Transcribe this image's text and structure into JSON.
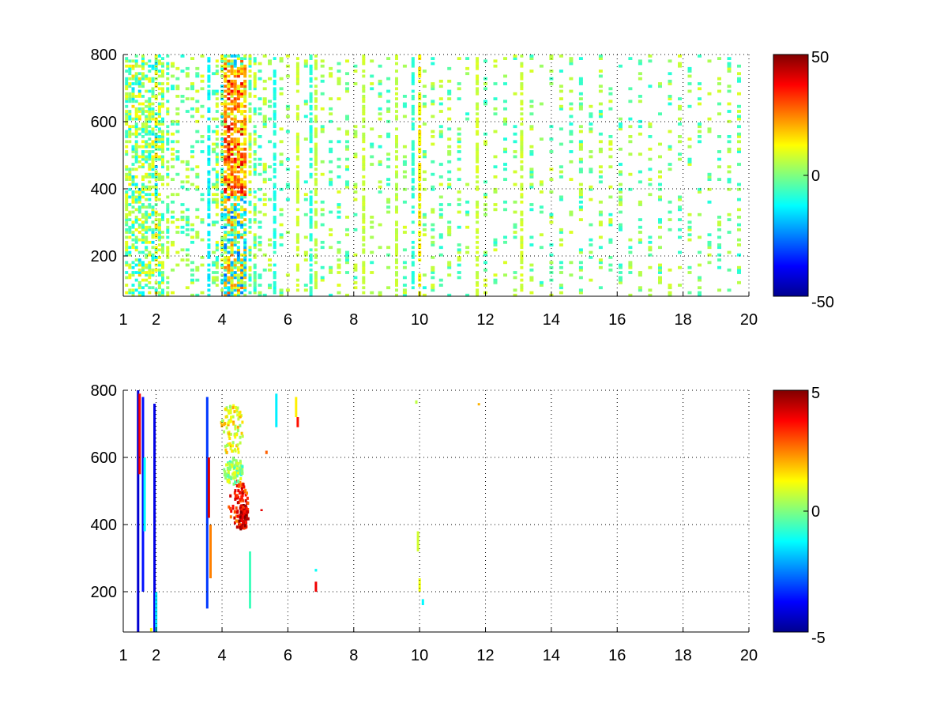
{
  "chart_data": [
    {
      "type": "heatmap",
      "title": "",
      "xlabel": "",
      "ylabel": "",
      "xlim": [
        1,
        20
      ],
      "ylim": [
        80,
        800
      ],
      "x_ticks": [
        1,
        2,
        4,
        6,
        8,
        10,
        12,
        14,
        16,
        18,
        20
      ],
      "x_tick_labels": [
        "1",
        "2",
        "4",
        "6",
        "8",
        "10",
        "12",
        "14",
        "16",
        "18",
        "20"
      ],
      "y_ticks": [
        200,
        400,
        600,
        800
      ],
      "y_tick_labels": [
        "200",
        "400",
        "600",
        "800"
      ],
      "grid": true,
      "colorbar": {
        "colormap": "jet",
        "range": [
          -50,
          50
        ],
        "ticks": [
          -50,
          0,
          50
        ],
        "tick_labels": [
          "-50",
          "0",
          "50"
        ]
      },
      "columns": [
        {
          "x": 1.1,
          "mode": "dense",
          "amp": 0.18
        },
        {
          "x": 1.2,
          "mode": "dense",
          "amp": 0.22
        },
        {
          "x": 1.3,
          "mode": "dense",
          "amp": 0.28
        },
        {
          "x": 1.4,
          "mode": "dense",
          "amp": 0.22
        },
        {
          "x": 1.5,
          "mode": "dense",
          "amp": 0.3
        },
        {
          "x": 1.6,
          "mode": "dense",
          "amp": 0.22
        },
        {
          "x": 1.7,
          "mode": "dense",
          "amp": 0.18
        },
        {
          "x": 1.8,
          "mode": "dense",
          "amp": 0.22
        },
        {
          "x": 1.9,
          "mode": "dense",
          "amp": 0.26
        },
        {
          "x": 2.0,
          "mode": "dense",
          "amp": 0.3
        },
        {
          "x": 2.1,
          "mode": "dense",
          "amp": 0.2
        },
        {
          "x": 2.2,
          "mode": "dense",
          "amp": 0.18
        },
        {
          "x": 2.35,
          "mode": "dense",
          "amp": 0.16
        },
        {
          "x": 2.5,
          "mode": "sparse",
          "amp": 0.16
        },
        {
          "x": 2.65,
          "mode": "sparse",
          "amp": 0.15
        },
        {
          "x": 2.8,
          "mode": "sparse",
          "amp": 0.15
        },
        {
          "x": 2.95,
          "mode": "sparse",
          "amp": 0.14
        },
        {
          "x": 3.1,
          "mode": "sparse",
          "amp": 0.14
        },
        {
          "x": 3.25,
          "mode": "sparse",
          "amp": 0.14
        },
        {
          "x": 3.4,
          "mode": "sparse",
          "amp": 0.15
        },
        {
          "x": 3.6,
          "mode": "line",
          "amp": -0.3
        },
        {
          "x": 3.75,
          "mode": "sparse",
          "amp": 0.16
        },
        {
          "x": 3.85,
          "mode": "dense",
          "amp": 0.2
        },
        {
          "x": 4.0,
          "mode": "dense",
          "amp": 0.3
        },
        {
          "x": 4.1,
          "mode": "hot",
          "amp": 0.5
        },
        {
          "x": 4.2,
          "mode": "hot",
          "amp": 0.55
        },
        {
          "x": 4.3,
          "mode": "hot",
          "amp": 0.5
        },
        {
          "x": 4.4,
          "mode": "hot",
          "amp": 0.45
        },
        {
          "x": 4.5,
          "mode": "hot",
          "amp": 0.5
        },
        {
          "x": 4.6,
          "mode": "hot",
          "amp": 0.55
        },
        {
          "x": 4.7,
          "mode": "hot",
          "amp": 0.4
        },
        {
          "x": 4.85,
          "mode": "dense",
          "amp": 0.2
        },
        {
          "x": 5.0,
          "mode": "dense",
          "amp": 0.18
        },
        {
          "x": 5.15,
          "mode": "sparse",
          "amp": 0.16
        },
        {
          "x": 5.3,
          "mode": "sparse",
          "amp": 0.15
        },
        {
          "x": 5.45,
          "mode": "sparse",
          "amp": 0.14
        },
        {
          "x": 5.6,
          "mode": "line",
          "amp": -0.22
        },
        {
          "x": 5.8,
          "mode": "sparse",
          "amp": 0.14
        },
        {
          "x": 6.0,
          "mode": "sparse",
          "amp": 0.13
        },
        {
          "x": 6.3,
          "mode": "line",
          "amp": 0.18
        },
        {
          "x": 6.55,
          "mode": "sparse",
          "amp": 0.14
        },
        {
          "x": 6.7,
          "mode": "line",
          "amp": -0.2
        },
        {
          "x": 6.85,
          "mode": "line",
          "amp": 0.16
        },
        {
          "x": 7.05,
          "mode": "sparse",
          "amp": 0.14
        },
        {
          "x": 7.3,
          "mode": "sparse",
          "amp": 0.14
        },
        {
          "x": 7.55,
          "mode": "sparse",
          "amp": 0.14
        },
        {
          "x": 7.8,
          "mode": "sparse",
          "amp": 0.14
        },
        {
          "x": 8.05,
          "mode": "sparse",
          "amp": 0.14
        },
        {
          "x": 8.3,
          "mode": "line",
          "amp": 0.16
        },
        {
          "x": 8.55,
          "mode": "sparse",
          "amp": 0.14
        },
        {
          "x": 8.8,
          "mode": "sparse",
          "amp": 0.14
        },
        {
          "x": 9.05,
          "mode": "sparse",
          "amp": 0.14
        },
        {
          "x": 9.3,
          "mode": "line",
          "amp": 0.15
        },
        {
          "x": 9.55,
          "mode": "sparse",
          "amp": 0.14
        },
        {
          "x": 9.8,
          "mode": "line",
          "amp": -0.2
        },
        {
          "x": 10.0,
          "mode": "line",
          "amp": 0.3
        },
        {
          "x": 10.15,
          "mode": "sparse",
          "amp": 0.15
        },
        {
          "x": 10.4,
          "mode": "sparse",
          "amp": 0.14
        },
        {
          "x": 10.65,
          "mode": "sparse",
          "amp": 0.14
        },
        {
          "x": 10.9,
          "mode": "sparse",
          "amp": 0.14
        },
        {
          "x": 11.2,
          "mode": "sparse",
          "amp": 0.14
        },
        {
          "x": 11.45,
          "mode": "sparse",
          "amp": 0.14
        },
        {
          "x": 11.75,
          "mode": "line",
          "amp": 0.18
        },
        {
          "x": 12.0,
          "mode": "sparse",
          "amp": 0.14
        },
        {
          "x": 12.3,
          "mode": "sparse",
          "amp": 0.14
        },
        {
          "x": 12.6,
          "mode": "sparse",
          "amp": 0.14
        },
        {
          "x": 12.9,
          "mode": "sparse",
          "amp": 0.14
        },
        {
          "x": 13.1,
          "mode": "line",
          "amp": 0.18
        },
        {
          "x": 13.4,
          "mode": "sparse",
          "amp": 0.14
        },
        {
          "x": 13.7,
          "mode": "sparse",
          "amp": 0.14
        },
        {
          "x": 14.0,
          "mode": "sparse",
          "amp": 0.14
        },
        {
          "x": 14.3,
          "mode": "sparse",
          "amp": 0.14
        },
        {
          "x": 14.6,
          "mode": "sparse",
          "amp": 0.14
        },
        {
          "x": 14.9,
          "mode": "sparse",
          "amp": 0.14
        },
        {
          "x": 15.2,
          "mode": "sparse",
          "amp": 0.14
        },
        {
          "x": 15.5,
          "mode": "sparse",
          "amp": 0.14
        },
        {
          "x": 15.8,
          "mode": "sparse",
          "amp": 0.14
        },
        {
          "x": 16.1,
          "mode": "sparse",
          "amp": 0.14
        },
        {
          "x": 16.4,
          "mode": "sparse",
          "amp": 0.14
        },
        {
          "x": 16.7,
          "mode": "sparse",
          "amp": 0.14
        },
        {
          "x": 17.0,
          "mode": "sparse",
          "amp": 0.14
        },
        {
          "x": 17.3,
          "mode": "sparse",
          "amp": 0.14
        },
        {
          "x": 17.6,
          "mode": "sparse",
          "amp": 0.14
        },
        {
          "x": 17.9,
          "mode": "sparse",
          "amp": 0.14
        },
        {
          "x": 18.2,
          "mode": "sparse",
          "amp": 0.14
        },
        {
          "x": 18.5,
          "mode": "sparse",
          "amp": 0.14
        },
        {
          "x": 18.8,
          "mode": "sparse",
          "amp": 0.14
        },
        {
          "x": 19.1,
          "mode": "sparse",
          "amp": 0.14
        },
        {
          "x": 19.4,
          "mode": "sparse",
          "amp": 0.14
        },
        {
          "x": 19.7,
          "mode": "sparse",
          "amp": 0.14
        }
      ]
    },
    {
      "type": "heatmap",
      "title": "",
      "xlabel": "",
      "ylabel": "",
      "xlim": [
        1,
        20
      ],
      "ylim": [
        80,
        800
      ],
      "x_ticks": [
        1,
        2,
        4,
        6,
        8,
        10,
        12,
        14,
        16,
        18,
        20
      ],
      "x_tick_labels": [
        "1",
        "2",
        "4",
        "6",
        "8",
        "10",
        "12",
        "14",
        "16",
        "18",
        "20"
      ],
      "y_ticks": [
        200,
        400,
        600,
        800
      ],
      "y_tick_labels": [
        "200",
        "400",
        "600",
        "800"
      ],
      "grid": true,
      "colorbar": {
        "colormap": "jet",
        "range": [
          -5,
          5
        ],
        "ticks": [
          -5,
          0,
          5
        ],
        "tick_labels": [
          "-5",
          "0",
          "5"
        ]
      },
      "segments": [
        {
          "x": 1.45,
          "y0": 80,
          "y1": 800,
          "value": -4.2
        },
        {
          "x": 1.5,
          "y0": 550,
          "y1": 790,
          "value": 3.8
        },
        {
          "x": 1.6,
          "y0": 200,
          "y1": 780,
          "value": -3.6
        },
        {
          "x": 1.65,
          "y0": 380,
          "y1": 600,
          "value": -1.2
        },
        {
          "x": 1.95,
          "y0": 80,
          "y1": 760,
          "value": -4.0
        },
        {
          "x": 2.0,
          "y0": 80,
          "y1": 200,
          "value": -1.5
        },
        {
          "x": 1.85,
          "y0": 82,
          "y1": 92,
          "value": 1.2
        },
        {
          "x": 3.55,
          "y0": 150,
          "y1": 780,
          "value": -3.2
        },
        {
          "x": 3.6,
          "y0": 420,
          "y1": 600,
          "value": 4.1
        },
        {
          "x": 3.65,
          "y0": 240,
          "y1": 400,
          "value": 2.5
        },
        {
          "x": 5.65,
          "y0": 690,
          "y1": 790,
          "value": -1.4
        },
        {
          "x": 6.25,
          "y0": 720,
          "y1": 780,
          "value": 1.4
        },
        {
          "x": 6.3,
          "y0": 690,
          "y1": 720,
          "value": 3.6
        },
        {
          "x": 6.85,
          "y0": 200,
          "y1": 230,
          "value": 3.9
        },
        {
          "x": 6.85,
          "y0": 260,
          "y1": 268,
          "value": -1.2
        },
        {
          "x": 4.85,
          "y0": 150,
          "y1": 320,
          "value": -0.6
        },
        {
          "x": 9.95,
          "y0": 320,
          "y1": 380,
          "value": 0.8
        },
        {
          "x": 10.0,
          "y0": 200,
          "y1": 240,
          "value": 1.1
        },
        {
          "x": 10.1,
          "y0": 160,
          "y1": 178,
          "value": -1.3
        },
        {
          "x": 9.9,
          "y0": 760,
          "y1": 770,
          "value": 0.6
        },
        {
          "x": 11.8,
          "y0": 755,
          "y1": 762,
          "value": 2.0
        },
        {
          "x": 5.35,
          "y0": 610,
          "y1": 620,
          "value": 2.8
        },
        {
          "x": 5.2,
          "y0": 440,
          "y1": 446,
          "value": 4.0
        }
      ],
      "blobs": [
        {
          "x": 4.3,
          "y": 680,
          "rx": 0.35,
          "ry": 80,
          "value": 1.2
        },
        {
          "x": 4.5,
          "y": 460,
          "rx": 0.3,
          "ry": 70,
          "value": 3.4
        },
        {
          "x": 4.35,
          "y": 560,
          "rx": 0.3,
          "ry": 40,
          "value": 0.2
        },
        {
          "x": 4.65,
          "y": 420,
          "rx": 0.15,
          "ry": 40,
          "value": 4.2
        }
      ]
    }
  ]
}
